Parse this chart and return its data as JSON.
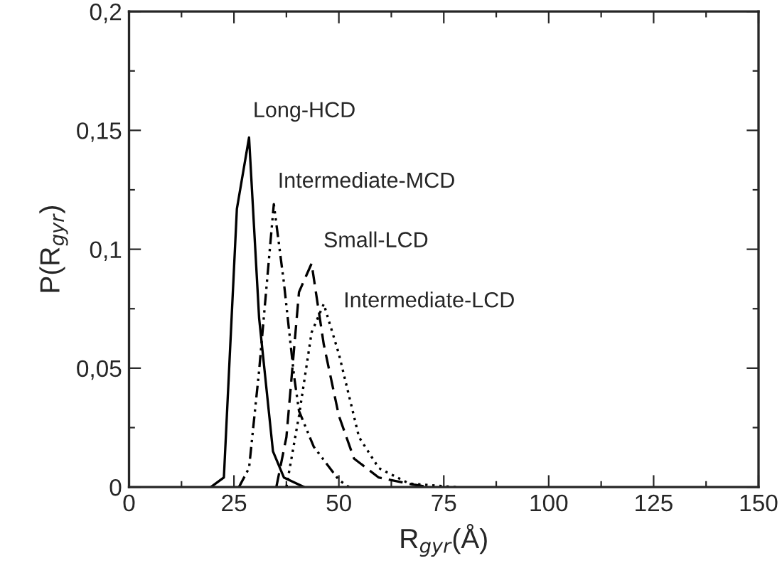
{
  "chart_data": {
    "type": "line",
    "xlabel": "R$_{gyr}$(Å)",
    "ylabel": "P(R$_{gyr}$)",
    "xlim": [
      0,
      150
    ],
    "ylim": [
      0,
      0.2
    ],
    "xticks": [
      0,
      {
        "value": 12.5,
        "label": null
      },
      25,
      {
        "value": 37.5,
        "label": null
      },
      50,
      {
        "value": 62.5,
        "label": null
      },
      75,
      {
        "value": 87.5,
        "label": null
      },
      100,
      {
        "value": 112.5,
        "label": null
      },
      125,
      {
        "value": 137.5,
        "label": null
      },
      150
    ],
    "yticks": [
      {
        "value": 0,
        "label": "0"
      },
      {
        "value": 0.025,
        "label": null
      },
      {
        "value": 0.05,
        "label": "0,05"
      },
      {
        "value": 0.075,
        "label": null
      },
      {
        "value": 0.1,
        "label": "0,1"
      },
      {
        "value": 0.125,
        "label": null
      },
      {
        "value": 0.15,
        "label": "0,15"
      },
      {
        "value": 0.175,
        "label": null
      },
      {
        "value": 0.2,
        "label": "0,2"
      }
    ],
    "grid": false,
    "legend": false,
    "series": [
      {
        "name": "Long-HCD",
        "color": "#000000",
        "line_style": "solid",
        "x": [
          19.5,
          22.6,
          25.7,
          28.6,
          31,
          34.3,
          36.9,
          41.7
        ],
        "values": [
          0,
          0.004,
          0.117,
          0.147,
          0.071,
          0.015,
          0.004,
          0
        ]
      },
      {
        "name": "Intermediate-MCD",
        "color": "#000000",
        "line_style": "dashdot",
        "x": [
          26.2,
          28.6,
          31,
          34.5,
          36.9,
          39.3,
          40.5,
          44,
          50,
          52.4
        ],
        "values": [
          0,
          0.008,
          0.049,
          0.119,
          0.086,
          0.047,
          0.032,
          0.017,
          0.003,
          0
        ]
      },
      {
        "name": "Small-LCD",
        "color": "#000000",
        "line_style": "dashed",
        "x": [
          35.1,
          37.5,
          40.5,
          43.5,
          46.4,
          50,
          53.6,
          59.5,
          67.9,
          71.4
        ],
        "values": [
          0,
          0.021,
          0.082,
          0.094,
          0.06,
          0.03,
          0.012,
          0.004,
          0.001,
          0
        ]
      },
      {
        "name": "Intermediate-LCD",
        "color": "#000000",
        "line_style": "dotted",
        "x": [
          37.5,
          40.5,
          43.5,
          46.4,
          50,
          54.8,
          59.5,
          66.7,
          78
        ],
        "values": [
          0,
          0.03,
          0.065,
          0.077,
          0.056,
          0.021,
          0.008,
          0.0015,
          0
        ]
      }
    ]
  }
}
